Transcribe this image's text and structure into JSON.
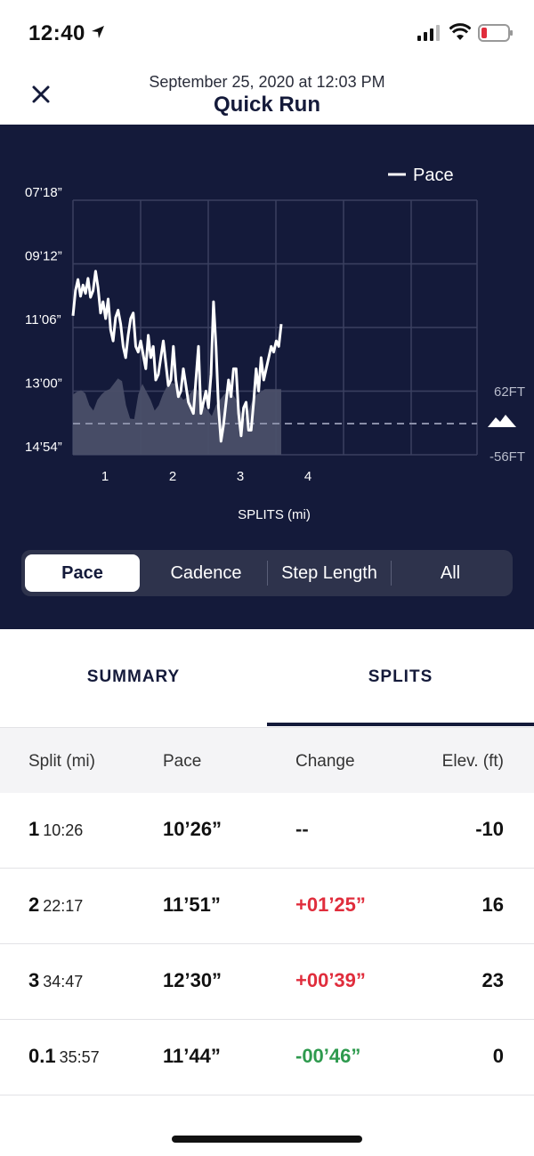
{
  "status_bar": {
    "time": "12:40"
  },
  "header": {
    "subtitle": "September 25, 2020 at 12:03 PM",
    "title": "Quick Run"
  },
  "chart_data": {
    "type": "line",
    "legend": "Pace",
    "xlabel": "SPLITS (mi)",
    "x_ticks": [
      "1",
      "2",
      "3",
      "4"
    ],
    "y_ticks": [
      "07’18”",
      "09’12”",
      "11’06”",
      "13’00”",
      "14’54”"
    ],
    "elevation_labels": {
      "top": "62FT",
      "bottom": "-56FT"
    },
    "pace_series_seconds": [
      645,
      600,
      580,
      610,
      590,
      605,
      578,
      612,
      600,
      565,
      595,
      640,
      620,
      650,
      615,
      670,
      690,
      648,
      635,
      660,
      700,
      720,
      680,
      650,
      640,
      700,
      710,
      690,
      715,
      740,
      680,
      720,
      700,
      760,
      750,
      720,
      690,
      730,
      770,
      760,
      700,
      760,
      790,
      780,
      740,
      770,
      800,
      810,
      820,
      760,
      700,
      820,
      800,
      780,
      810,
      750,
      620,
      700,
      810,
      870,
      840,
      800,
      760,
      790,
      740,
      740,
      820,
      860,
      810,
      800,
      850,
      850,
      800,
      740,
      780,
      720,
      760,
      740,
      720,
      700,
      710,
      690,
      700,
      660
    ],
    "elevation_series_ft": [
      -10,
      -5,
      -2,
      -8,
      -30,
      -40,
      -20,
      -10,
      -3,
      0,
      10,
      20,
      15,
      -30,
      -55,
      -56,
      -10,
      10,
      -5,
      -20,
      -40,
      -30,
      -10,
      5,
      12,
      10,
      -10,
      -20,
      -15,
      -5,
      5,
      -10,
      -30,
      -40,
      -50,
      -30,
      -20,
      -10,
      -5,
      -8,
      -20,
      -40,
      -56,
      -40,
      -20,
      -10,
      -5,
      0,
      0,
      0,
      0,
      0
    ]
  },
  "segments": [
    "Pace",
    "Cadence",
    "Step Length",
    "All"
  ],
  "tabs": {
    "summary": "SUMMARY",
    "splits": "SPLITS"
  },
  "table": {
    "headers": {
      "split": "Split (mi)",
      "pace": "Pace",
      "change": "Change",
      "elev": "Elev. (ft)"
    },
    "rows": [
      {
        "split": "1",
        "time": "10:26",
        "pace": "10’26”",
        "change": "--",
        "elev": "-10"
      },
      {
        "split": "2",
        "time": "22:17",
        "pace": "11’51”",
        "change": "+01’25”",
        "elev": "16"
      },
      {
        "split": "3",
        "time": "34:47",
        "pace": "12’30”",
        "change": "+00’39”",
        "elev": "23"
      },
      {
        "split": "0.1",
        "time": "35:57",
        "pace": "11’44”",
        "change": "-00’46”",
        "elev": "0"
      }
    ]
  },
  "colors": {
    "panel": "#141a3a",
    "positive_change": "#e02d3c",
    "negative_change": "#2e9a4e"
  }
}
